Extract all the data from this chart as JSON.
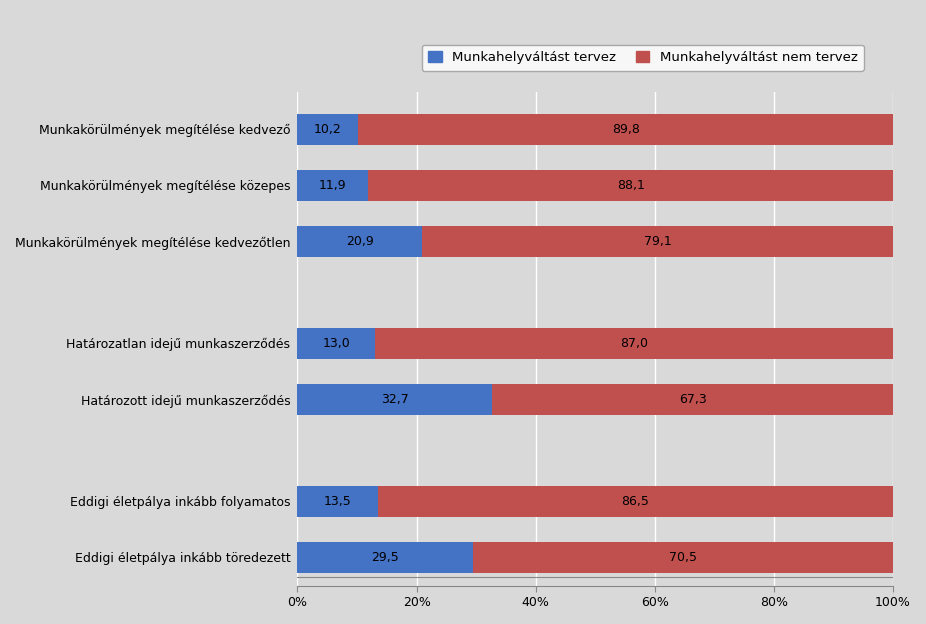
{
  "categories": [
    "Eddigi életpálya inkább töredezett",
    "Eddigi életpálya inkább folyamatos",
    "Határozott idejű munkaszerződés",
    "Határozatlan idejű munkaszerződés",
    "Munkakörülmények megítélése kedvezőtlen",
    "Munkakörülmények megítélése közepes",
    "Munkakörülmények megítélése kedvező"
  ],
  "values_planned": [
    29.5,
    13.5,
    32.7,
    13.0,
    20.9,
    11.9,
    10.2
  ],
  "values_not_planned": [
    70.5,
    86.5,
    67.3,
    87.0,
    79.1,
    88.1,
    89.8
  ],
  "labels_planned": [
    "29,5",
    "13,5",
    "32,7",
    "13,0",
    "20,9",
    "11,9",
    "10,2"
  ],
  "labels_not_planned": [
    "70,5",
    "86,5",
    "67,3",
    "87,0",
    "79,1",
    "88,1",
    "89,8"
  ],
  "color_planned": "#4472C4",
  "color_not_planned": "#C0504D",
  "legend_label_planned": "Munkahelyváltást tervez",
  "legend_label_not_planned": "Munkahelyváltást nem tervez",
  "background_color": "#D9D9D9",
  "plot_bg_color": "#D9D9D9",
  "figsize": [
    9.26,
    6.24
  ],
  "dpi": 100,
  "xlim": [
    0,
    100
  ],
  "xtick_labels": [
    "0%",
    "20%",
    "40%",
    "60%",
    "80%",
    "100%"
  ],
  "xtick_values": [
    0,
    20,
    40,
    60,
    80,
    100
  ],
  "font_size_labels": 9,
  "font_size_ticks": 9,
  "font_size_legend": 9.5,
  "bar_height": 0.55,
  "y_positions": [
    0,
    1,
    2.8,
    3.8,
    5.6,
    6.6,
    7.6
  ]
}
